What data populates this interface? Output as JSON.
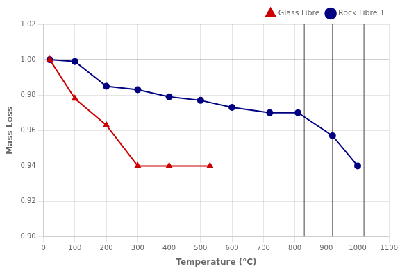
{
  "chart_data": {
    "type": "line",
    "x_label": "Temperature (°C)",
    "y_label": "Mass Loss",
    "series": [
      {
        "name": "Glass Fibre",
        "color": "#CC0000",
        "marker": "triangle",
        "x": [
          20,
          100,
          200,
          300,
          400,
          530
        ],
        "values": [
          1.0,
          0.978,
          0.963,
          0.94,
          0.94,
          0.94
        ]
      },
      {
        "name": "Rock Fibre 1",
        "color": "#000080",
        "marker": "circle",
        "x": [
          20,
          100,
          200,
          300,
          400,
          500,
          600,
          720,
          810,
          920,
          1000
        ],
        "values": [
          1.0,
          0.999,
          0.985,
          0.983,
          0.979,
          0.977,
          0.973,
          0.97,
          0.97,
          0.957,
          0.94
        ]
      }
    ],
    "hlines": [
      {
        "value": 1.0,
        "color": "#888888"
      }
    ],
    "vlines": [
      {
        "value": 830,
        "color": "#444444"
      },
      {
        "value": 920,
        "color": "#444444"
      },
      {
        "value": 1020,
        "color": "#444444"
      }
    ],
    "xlim": [
      0,
      1100
    ],
    "ylim": [
      0.9,
      1.02
    ],
    "xticks": [
      0,
      100,
      200,
      300,
      400,
      500,
      600,
      700,
      800,
      900,
      1000,
      1100
    ],
    "yticks": [
      {
        "value": 0.9,
        "label": "0.90"
      },
      0.92,
      0.94,
      0.96,
      0.98,
      {
        "value": 1.0,
        "label": "1.00"
      },
      1.02
    ],
    "grid": true,
    "legend": "upper right"
  }
}
